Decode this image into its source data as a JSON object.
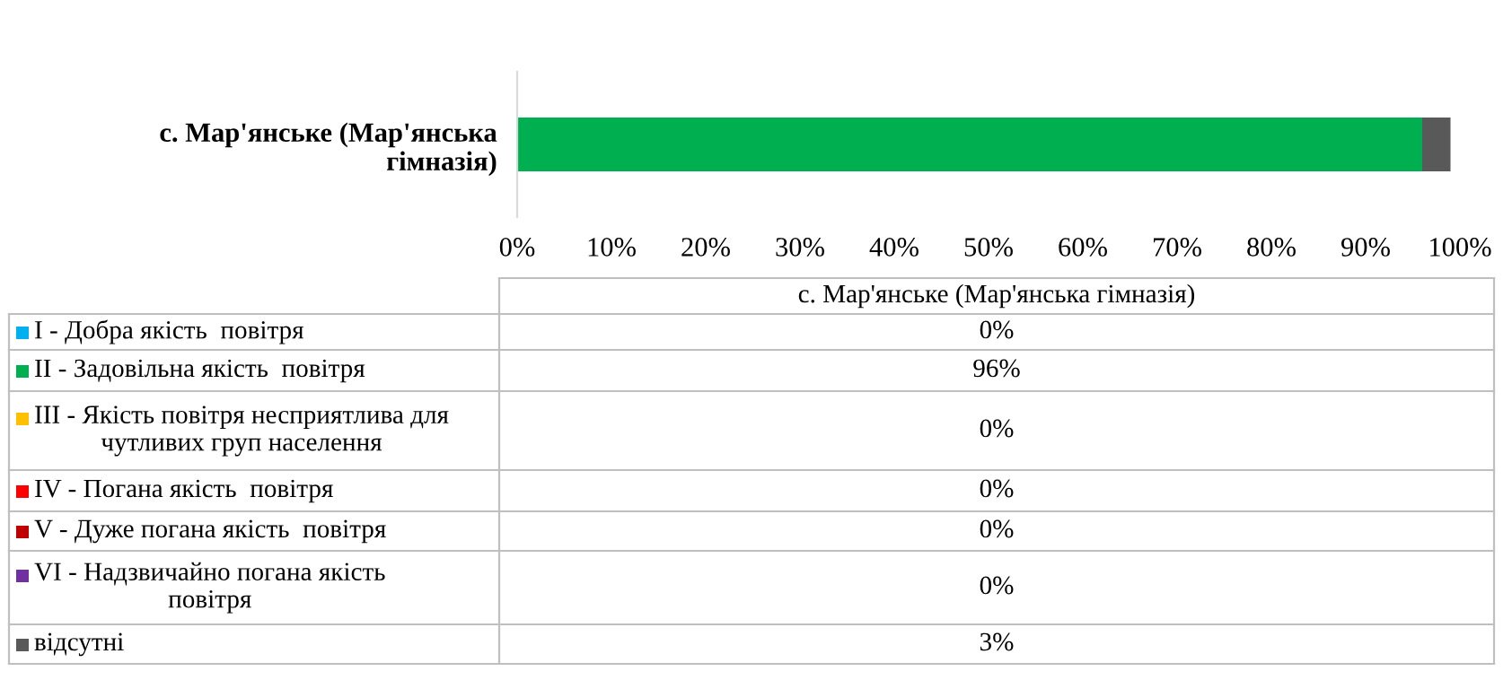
{
  "chart_data": {
    "type": "bar",
    "orientation": "horizontal",
    "stacked": true,
    "categories": [
      "с. Мар'янське (Мар'янська гімназія)"
    ],
    "series": [
      {
        "name": "I - Добра якість  повітря",
        "color": "#00b0f0",
        "values": [
          0
        ]
      },
      {
        "name": "II - Задовільна якість  повітря",
        "color": "#00b050",
        "values": [
          96
        ]
      },
      {
        "name": "III - Якість повітря несприятлива для чутливих груп населення",
        "color": "#ffc000",
        "values": [
          0
        ]
      },
      {
        "name": "IV - Погана якість  повітря",
        "color": "#ff0000",
        "values": [
          0
        ]
      },
      {
        "name": "V - Дуже погана якість  повітря",
        "color": "#c00000",
        "values": [
          0
        ]
      },
      {
        "name": "VI - Надзвичайно погана якість повітря",
        "color": "#7030a0",
        "values": [
          0
        ]
      },
      {
        "name": "відсутні",
        "color": "#595959",
        "values": [
          3
        ]
      }
    ],
    "xlim": [
      0,
      100
    ],
    "xticks": [
      {
        "value": 0,
        "label": "0%"
      },
      {
        "value": 10,
        "label": "10%"
      },
      {
        "value": 20,
        "label": "20%"
      },
      {
        "value": 30,
        "label": "30%"
      },
      {
        "value": 40,
        "label": "40%"
      },
      {
        "value": 50,
        "label": "50%"
      },
      {
        "value": 60,
        "label": "60%"
      },
      {
        "value": 70,
        "label": "70%"
      },
      {
        "value": 80,
        "label": "80%"
      },
      {
        "value": 90,
        "label": "90%"
      },
      {
        "value": 100,
        "label": "100%"
      }
    ],
    "value_labels": [
      "0%",
      "96%",
      "0%",
      "0%",
      "0%",
      "0%",
      "3%"
    ],
    "legend": "bottom",
    "grid": false
  }
}
